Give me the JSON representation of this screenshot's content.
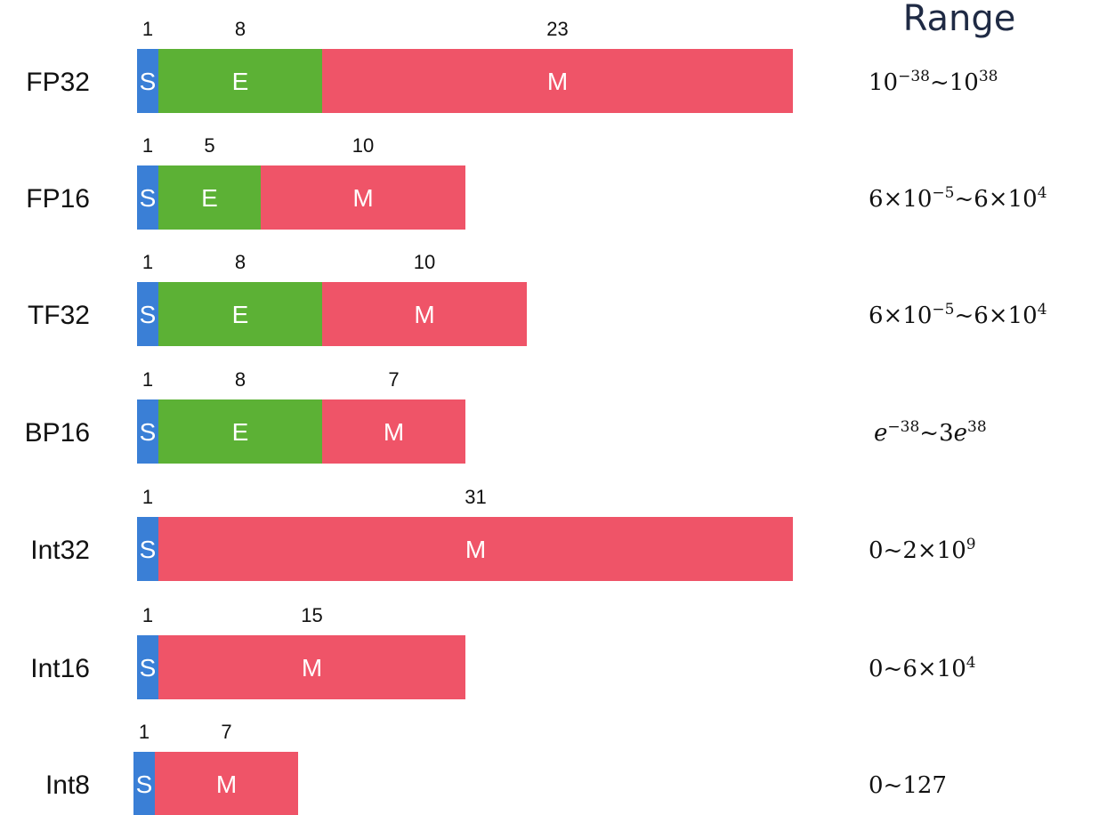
{
  "range_title": "Range",
  "colors": {
    "S": "#3a7fd6",
    "E": "#5cb135",
    "M": "#ef5468"
  },
  "formats": [
    {
      "name": "FP32",
      "segments": [
        {
          "type": "S",
          "label": "S",
          "bits": 1,
          "bits_label": "1"
        },
        {
          "type": "E",
          "label": "E",
          "bits": 8,
          "bits_label": "8"
        },
        {
          "type": "M",
          "label": "M",
          "bits": 23,
          "bits_label": "23"
        }
      ],
      "range": [
        {
          "t": "10"
        },
        {
          "t": "−38",
          "sup": true
        },
        {
          "t": "~10"
        },
        {
          "t": "38",
          "sup": true
        }
      ]
    },
    {
      "name": "FP16",
      "segments": [
        {
          "type": "S",
          "label": "S",
          "bits": 1,
          "bits_label": "1"
        },
        {
          "type": "E",
          "label": "E",
          "bits": 5,
          "bits_label": "5"
        },
        {
          "type": "M",
          "label": "M",
          "bits": 10,
          "bits_label": "10"
        }
      ],
      "range": [
        {
          "t": "6×10"
        },
        {
          "t": "−5",
          "sup": true
        },
        {
          "t": "~6×10"
        },
        {
          "t": "4",
          "sup": true
        }
      ]
    },
    {
      "name": "TF32",
      "segments": [
        {
          "type": "S",
          "label": "S",
          "bits": 1,
          "bits_label": "1"
        },
        {
          "type": "E",
          "label": "E",
          "bits": 8,
          "bits_label": "8"
        },
        {
          "type": "M",
          "label": "M",
          "bits": 10,
          "bits_label": "10"
        }
      ],
      "range": [
        {
          "t": "6×10"
        },
        {
          "t": "−5",
          "sup": true
        },
        {
          "t": "~6×10"
        },
        {
          "t": "4",
          "sup": true
        }
      ]
    },
    {
      "name": "BP16",
      "segments": [
        {
          "type": "S",
          "label": "S",
          "bits": 1,
          "bits_label": "1"
        },
        {
          "type": "E",
          "label": "E",
          "bits": 8,
          "bits_label": "8"
        },
        {
          "type": "M",
          "label": "M",
          "bits": 7,
          "bits_label": "7"
        }
      ],
      "range": [
        {
          "t": "e",
          "italic": true
        },
        {
          "t": "−38",
          "sup": true
        },
        {
          "t": "~3"
        },
        {
          "t": "e",
          "italic": true
        },
        {
          "t": "38",
          "sup": true
        }
      ]
    },
    {
      "name": "Int32",
      "segments": [
        {
          "type": "S",
          "label": "S",
          "bits": 1,
          "bits_label": "1"
        },
        {
          "type": "M",
          "label": "M",
          "bits": 31,
          "bits_label": "31"
        }
      ],
      "range": [
        {
          "t": "0~2×10"
        },
        {
          "t": "9",
          "sup": true
        }
      ]
    },
    {
      "name": "Int16",
      "segments": [
        {
          "type": "S",
          "label": "S",
          "bits": 1,
          "bits_label": "1"
        },
        {
          "type": "M",
          "label": "M",
          "bits": 15,
          "bits_label": "15"
        }
      ],
      "range": [
        {
          "t": "0~6×10"
        },
        {
          "t": "4",
          "sup": true
        }
      ]
    },
    {
      "name": "Int8",
      "segments": [
        {
          "type": "S",
          "label": "S",
          "bits": 1,
          "bits_label": "1"
        },
        {
          "type": "M",
          "label": "M",
          "bits": 7,
          "bits_label": "7"
        }
      ],
      "range": [
        {
          "t": "0~127"
        }
      ]
    }
  ]
}
